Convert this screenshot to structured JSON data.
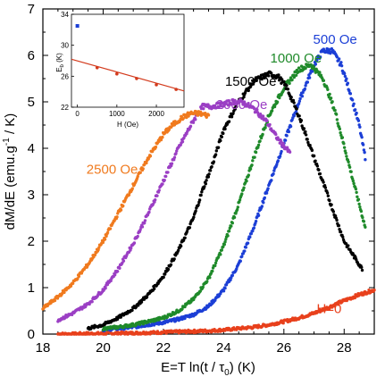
{
  "chart_data": [
    {
      "type": "scatter",
      "title": "",
      "xlabel": "E=T ln(t / τ",
      "xlabel_sub": "0",
      "xlabel_tail": ") (K)",
      "ylabel": "dM/dE (emu.g",
      "ylabel_sup": "-1",
      "ylabel_tail": " / K)",
      "xlim": [
        18,
        29
      ],
      "ylim": [
        0,
        7
      ],
      "xticks": [
        "18",
        "20",
        "22",
        "24",
        "26",
        "28"
      ],
      "yticks": [
        "0",
        "1",
        "2",
        "3",
        "4",
        "5",
        "6",
        "7"
      ],
      "series": [
        {
          "name": "H=0",
          "color": "#e8401c",
          "label_at": [
            27.5,
            0.45
          ],
          "x": [
            18.5,
            19.0,
            19.5,
            20.0,
            20.5,
            21.0,
            21.5,
            22.0,
            22.5,
            23.0,
            23.5,
            24.0,
            24.5,
            25.0,
            25.5,
            26.0,
            26.5,
            27.0,
            27.5,
            28.0,
            28.5,
            29.0
          ],
          "y": [
            0.0,
            0.0,
            0.01,
            0.01,
            0.02,
            0.02,
            0.03,
            0.04,
            0.05,
            0.06,
            0.07,
            0.09,
            0.12,
            0.15,
            0.2,
            0.27,
            0.35,
            0.45,
            0.58,
            0.72,
            0.85,
            0.95
          ]
        },
        {
          "name": "500 Oe",
          "color": "#1c3fd6",
          "label_at": [
            27.7,
            6.25
          ],
          "x": [
            20.0,
            20.5,
            21.0,
            21.5,
            22.0,
            22.5,
            23.0,
            23.5,
            24.0,
            24.5,
            25.0,
            25.5,
            26.0,
            26.5,
            27.0,
            27.3,
            27.6,
            27.9,
            28.2,
            28.5,
            28.7
          ],
          "y": [
            0.1,
            0.12,
            0.15,
            0.2,
            0.25,
            0.32,
            0.42,
            0.6,
            0.95,
            1.5,
            2.3,
            3.2,
            4.1,
            5.0,
            5.8,
            6.1,
            6.1,
            5.8,
            5.2,
            4.5,
            3.8
          ]
        },
        {
          "name": "1000 Oe",
          "color": "#1f8a2a",
          "label_at": [
            26.4,
            5.85
          ],
          "x": [
            20.0,
            20.5,
            21.0,
            21.5,
            22.0,
            22.5,
            23.0,
            23.5,
            24.0,
            24.5,
            25.0,
            25.5,
            26.0,
            26.5,
            26.9,
            27.3,
            27.7,
            28.1,
            28.5,
            28.7
          ],
          "y": [
            0.12,
            0.15,
            0.2,
            0.27,
            0.35,
            0.5,
            0.75,
            1.2,
            1.9,
            2.8,
            3.8,
            4.7,
            5.3,
            5.7,
            5.8,
            5.5,
            4.8,
            3.8,
            2.8,
            2.3
          ]
        },
        {
          "name": "1500 Oe",
          "color": "#000000",
          "label_at": [
            24.9,
            5.35
          ],
          "x": [
            19.5,
            20.0,
            20.5,
            21.0,
            21.5,
            22.0,
            22.5,
            23.0,
            23.3,
            23.6,
            24.0,
            24.5,
            25.0,
            25.5,
            25.8,
            26.1,
            26.5,
            27.0,
            27.5,
            28.0,
            28.6
          ],
          "y": [
            0.12,
            0.2,
            0.35,
            0.55,
            0.85,
            1.25,
            1.8,
            2.5,
            3.1,
            3.6,
            4.4,
            5.0,
            5.45,
            5.6,
            5.55,
            5.3,
            4.7,
            3.8,
            2.9,
            2.0,
            1.4
          ]
        },
        {
          "name": "2000 Oe",
          "color": "#9b3fc4",
          "label_at": [
            24.6,
            4.85
          ],
          "x": [
            18.5,
            19.0,
            19.5,
            20.0,
            20.5,
            21.0,
            21.5,
            22.0,
            22.5,
            23.0,
            23.3,
            23.6,
            24.0,
            24.3,
            24.6,
            25.0,
            25.4,
            25.8,
            26.2
          ],
          "y": [
            0.3,
            0.45,
            0.65,
            0.95,
            1.4,
            1.95,
            2.6,
            3.3,
            4.0,
            4.6,
            4.9,
            4.9,
            4.95,
            5.0,
            5.0,
            4.85,
            4.6,
            4.2,
            3.9
          ]
        },
        {
          "name": "2500 Oe",
          "color": "#f07a1e",
          "label_at": [
            20.3,
            3.45
          ],
          "x": [
            18.0,
            18.5,
            19.0,
            19.5,
            20.0,
            20.5,
            21.0,
            21.5,
            22.0,
            22.3,
            22.6,
            22.9,
            23.2,
            23.5
          ],
          "y": [
            0.55,
            0.8,
            1.1,
            1.5,
            2.0,
            2.6,
            3.2,
            3.8,
            4.3,
            4.5,
            4.65,
            4.75,
            4.75,
            4.7
          ]
        }
      ]
    },
    {
      "type": "scatter",
      "title": "",
      "xlabel": "H (Oe)",
      "ylabel": "E",
      "ylabel_sub": "b",
      "ylabel_tail": " (K)",
      "xlim": [
        -150,
        2700
      ],
      "ylim": [
        22,
        34
      ],
      "xticks": [
        "0",
        "1000",
        "2000"
      ],
      "yticks": [
        "22",
        "26",
        "30",
        "34"
      ],
      "fit_line": {
        "color": "#d33a1c",
        "x": [
          -150,
          2700
        ],
        "y": [
          28.2,
          24.1
        ]
      },
      "series": [
        {
          "name": "",
          "color": "#1c3fd6",
          "marker": "square",
          "x": [
            0
          ],
          "y": [
            32.5
          ]
        },
        {
          "name": "",
          "color": "#d33a1c",
          "marker": "circle",
          "x": [
            500,
            1000,
            1500,
            2000,
            2500
          ],
          "y": [
            27.1,
            26.3,
            25.7,
            24.9,
            24.3
          ]
        }
      ]
    }
  ]
}
